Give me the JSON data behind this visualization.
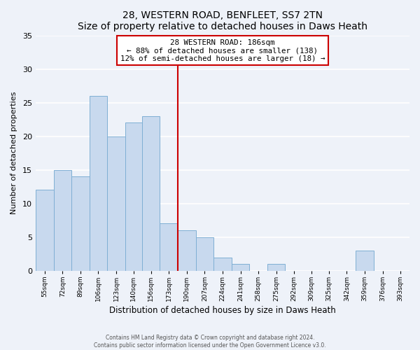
{
  "title": "28, WESTERN ROAD, BENFLEET, SS7 2TN",
  "subtitle": "Size of property relative to detached houses in Daws Heath",
  "xlabel": "Distribution of detached houses by size in Daws Heath",
  "ylabel": "Number of detached properties",
  "bin_labels": [
    "55sqm",
    "72sqm",
    "89sqm",
    "106sqm",
    "123sqm",
    "140sqm",
    "156sqm",
    "173sqm",
    "190sqm",
    "207sqm",
    "224sqm",
    "241sqm",
    "258sqm",
    "275sqm",
    "292sqm",
    "309sqm",
    "325sqm",
    "342sqm",
    "359sqm",
    "376sqm",
    "393sqm"
  ],
  "bin_edges": [
    55,
    72,
    89,
    106,
    123,
    140,
    156,
    173,
    190,
    207,
    224,
    241,
    258,
    275,
    292,
    309,
    325,
    342,
    359,
    376,
    393,
    410
  ],
  "counts": [
    12,
    15,
    14,
    26,
    20,
    22,
    23,
    7,
    6,
    5,
    2,
    1,
    0,
    1,
    0,
    0,
    0,
    0,
    3,
    0,
    0
  ],
  "bar_color": "#c8d9ee",
  "bar_edge_color": "#7fafd4",
  "vline_x": 190,
  "vline_color": "#cc0000",
  "annotation_title": "28 WESTERN ROAD: 186sqm",
  "annotation_line1": "← 88% of detached houses are smaller (138)",
  "annotation_line2": "12% of semi-detached houses are larger (18) →",
  "annotation_box_color": "#ffffff",
  "annotation_box_edge": "#cc0000",
  "ylim": [
    0,
    35
  ],
  "yticks": [
    0,
    5,
    10,
    15,
    20,
    25,
    30,
    35
  ],
  "footer_line1": "Contains HM Land Registry data © Crown copyright and database right 2024.",
  "footer_line2": "Contains public sector information licensed under the Open Government Licence v3.0.",
  "bg_color": "#eef2f9"
}
